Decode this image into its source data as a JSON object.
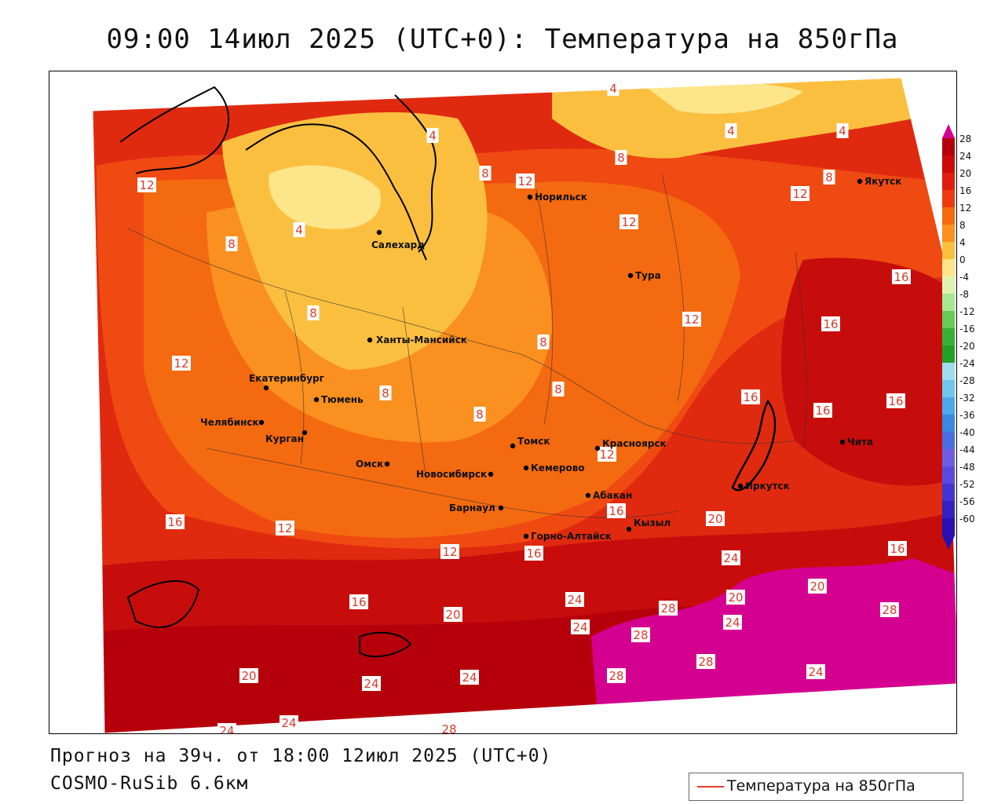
{
  "title": "09:00 14июл 2025 (UTC+0): Температура на 850гПа",
  "forecast_line": "Прогноз на 39ч. от 18:00 12июл 2025 (UTC+0)",
  "model_line": "COSMO-RuSib 6.6км",
  "legend_label": "Температура на 850гПа",
  "colorbar": {
    "labels": [
      "28",
      "24",
      "20",
      "16",
      "12",
      "8",
      "4",
      "0",
      "-4",
      "-8",
      "-12",
      "-16",
      "-20",
      "-24",
      "-28",
      "-32",
      "-36",
      "-40",
      "-44",
      "-48",
      "-52",
      "-56",
      "-60"
    ],
    "colors": [
      "#b5000c",
      "#cc0a0a",
      "#e01e10",
      "#ee3a10",
      "#f46a10",
      "#fa9020",
      "#fbbf40",
      "#fde58a",
      "#dff2b0",
      "#a8e890",
      "#66cc55",
      "#38b035",
      "#22a025",
      "#a0dcef",
      "#70c6ee",
      "#4ca8e8",
      "#3a88e0",
      "#4a6ee0",
      "#6f5fe0",
      "#5a4ae0",
      "#4434d0",
      "#3420c0",
      "#2a10b0"
    ],
    "top_color": "#d40090"
  },
  "cities": [
    {
      "name": "Норильск"
    },
    {
      "name": "Якутск"
    },
    {
      "name": "Салехард"
    },
    {
      "name": "Тура"
    },
    {
      "name": "Ханты-Мансийск"
    },
    {
      "name": "Екатеринбург"
    },
    {
      "name": "Тюмень"
    },
    {
      "name": "Челябинск"
    },
    {
      "name": "Курган"
    },
    {
      "name": "Омск"
    },
    {
      "name": "Новосибирск"
    },
    {
      "name": "Томск"
    },
    {
      "name": "Кемерово"
    },
    {
      "name": "Красноярск"
    },
    {
      "name": "Барнаул"
    },
    {
      "name": "Абакан"
    },
    {
      "name": "Иркутск"
    },
    {
      "name": "Чита"
    },
    {
      "name": "Горно-Алтайск"
    },
    {
      "name": "Кызыл"
    }
  ],
  "isotherm_labels": [
    "4",
    "4",
    "4",
    "4",
    "4",
    "8",
    "8",
    "8",
    "8",
    "8",
    "8",
    "8",
    "8",
    "8",
    "12",
    "12",
    "12",
    "12",
    "12",
    "12",
    "12",
    "12",
    "12",
    "16",
    "16",
    "16",
    "16",
    "16",
    "16",
    "16",
    "16",
    "16",
    "16",
    "20",
    "20",
    "20",
    "20",
    "20",
    "24",
    "24",
    "24",
    "24",
    "24",
    "24",
    "24",
    "24",
    "24",
    "28",
    "28",
    "28",
    "28",
    "28",
    "28"
  ]
}
